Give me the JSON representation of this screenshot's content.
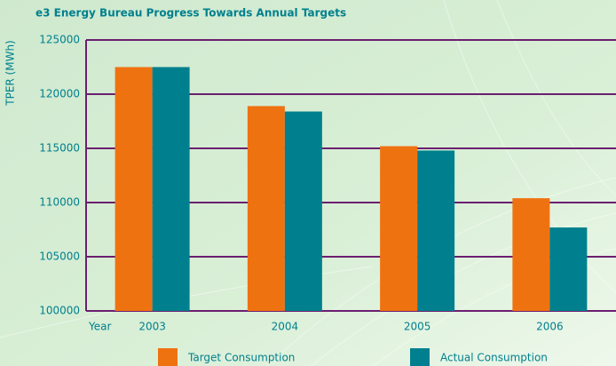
{
  "chart_data": {
    "type": "bar",
    "title": "e3 Energy Bureau Progress Towards Annual Targets",
    "y_label": "TPER (MWh)",
    "x_label": "Year",
    "categories": [
      "2003",
      "2004",
      "2005",
      "2006"
    ],
    "series": [
      {
        "name": "Target Consumption",
        "color": "#ef7211",
        "values": [
          122500,
          118900,
          115200,
          110400
        ]
      },
      {
        "name": "Actual Consumption",
        "color": "#00808e",
        "values": [
          122500,
          118400,
          114800,
          107700
        ]
      }
    ],
    "ylim": [
      100000,
      125000
    ],
    "yticks": [
      100000,
      105000,
      110000,
      115000,
      120000,
      125000
    ],
    "grid": true,
    "grid_color": "#6b1f70",
    "legend": "bottom"
  }
}
